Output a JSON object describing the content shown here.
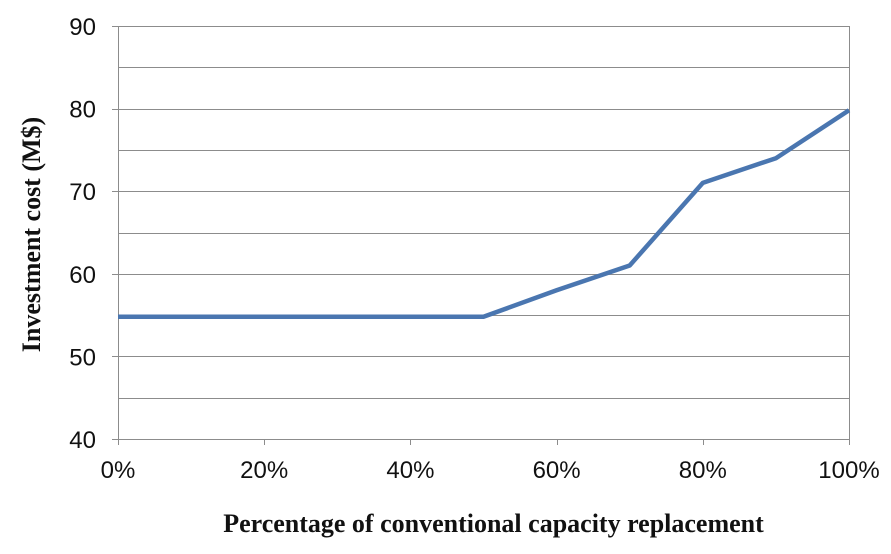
{
  "chart_data": {
    "type": "line",
    "title": "",
    "xlabel": "Percentage of conventional capacity replacement",
    "ylabel": "Investment cost (M$)",
    "x": [
      0,
      10,
      20,
      30,
      40,
      50,
      60,
      70,
      80,
      90,
      100
    ],
    "x_tick_values": [
      0,
      20,
      40,
      60,
      80,
      100
    ],
    "x_tick_labels": [
      "0%",
      "20%",
      "40%",
      "60%",
      "80%",
      "100%"
    ],
    "xlim": [
      0,
      100
    ],
    "y_tick_values": [
      40,
      50,
      60,
      70,
      80,
      90
    ],
    "y_tick_labels": [
      "40",
      "50",
      "60",
      "70",
      "80",
      "90"
    ],
    "ylim": [
      40,
      90
    ],
    "y_minor_gridlines": [
      45,
      55,
      65,
      75,
      85
    ],
    "grid": true,
    "legend": "none",
    "series": [
      {
        "values": [
          54.8,
          54.8,
          54.8,
          54.8,
          54.8,
          54.8,
          58.0,
          61.0,
          71.0,
          74.0,
          79.8
        ],
        "color": "#4a76b0"
      }
    ],
    "colors": {
      "grid": "#8c8c8c",
      "text": "#111111",
      "background": "#ffffff"
    }
  }
}
